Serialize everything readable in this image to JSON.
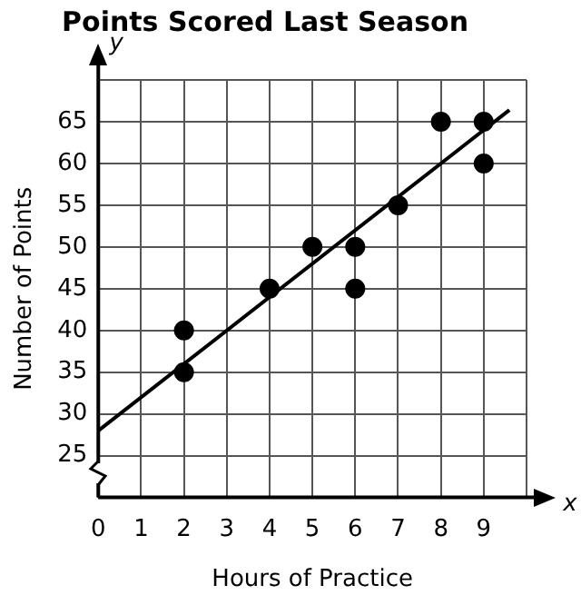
{
  "chart_data": {
    "type": "scatter",
    "title": "Points Scored Last Season",
    "xlabel": "Hours of Practice",
    "ylabel": "Number of Points",
    "annotations": [
      "y",
      "x"
    ],
    "series": [
      {
        "color": "#000000",
        "marker": "circle",
        "x": [
          2,
          2,
          4,
          5,
          6,
          6,
          7,
          8,
          9,
          9
        ],
        "values": [
          40,
          35,
          45,
          50,
          50,
          45,
          55,
          65,
          65,
          60
        ]
      },
      {
        "type": "line",
        "color": "#000000",
        "marker": "none",
        "x": [
          0,
          9.6
        ],
        "values": [
          28,
          66.4
        ]
      }
    ],
    "xlim": [
      0,
      10
    ],
    "xticks": [
      0,
      1,
      2,
      3,
      4,
      5,
      6,
      7,
      8,
      9,
      {
        "value": 10,
        "label": null
      }
    ],
    "ylim": [
      20,
      70
    ],
    "yticks": [
      {
        "value": 20,
        "label": null
      },
      25,
      30,
      35,
      40,
      45,
      50,
      55,
      60,
      65,
      {
        "value": 70,
        "label": null
      }
    ],
    "grid": true,
    "legend": false,
    "line_style": "solid"
  }
}
